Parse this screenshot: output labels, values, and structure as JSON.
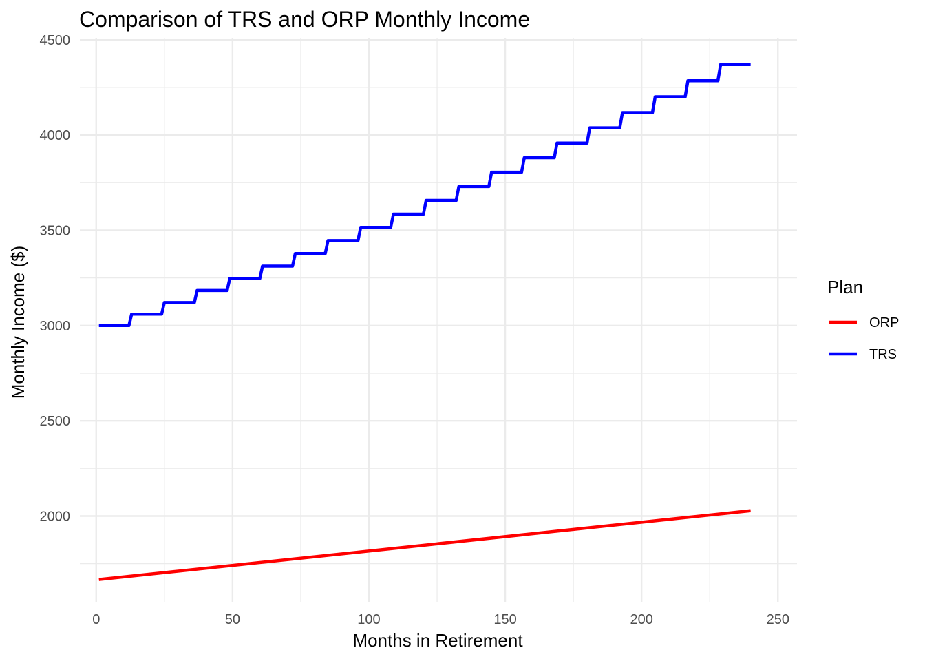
{
  "chart_data": {
    "type": "line",
    "title": "Comparison of TRS and ORP Monthly Income",
    "xlabel": "Months in Retirement",
    "ylabel": "Monthly Income ($)",
    "xlim": [
      -6,
      257
    ],
    "ylim": [
      1550,
      4510
    ],
    "x_ticks": [
      0,
      50,
      100,
      150,
      200,
      250
    ],
    "x_tick_labels": [
      "0",
      "50",
      "100",
      "150",
      "200",
      "250"
    ],
    "y_ticks": [
      2000,
      2500,
      3000,
      3500,
      4000,
      4500
    ],
    "y_tick_labels": [
      "2000",
      "2500",
      "3000",
      "3500",
      "4000",
      "4500"
    ],
    "grid": true,
    "legend": {
      "title": "Plan",
      "position": "right"
    },
    "series": [
      {
        "name": "ORP",
        "color": "#ff0000",
        "x": [
          1,
          240
        ],
        "y": [
          1667,
          2028
        ]
      },
      {
        "name": "TRS",
        "color": "#0000ff",
        "step_interval_months": 12,
        "x_start": 1,
        "x_end": 240,
        "levels": [
          3000,
          3060,
          3121,
          3184,
          3247,
          3312,
          3378,
          3446,
          3515,
          3585,
          3657,
          3730,
          3805,
          3881,
          3958,
          4038,
          4118,
          4201,
          4285,
          4370
        ]
      }
    ]
  }
}
